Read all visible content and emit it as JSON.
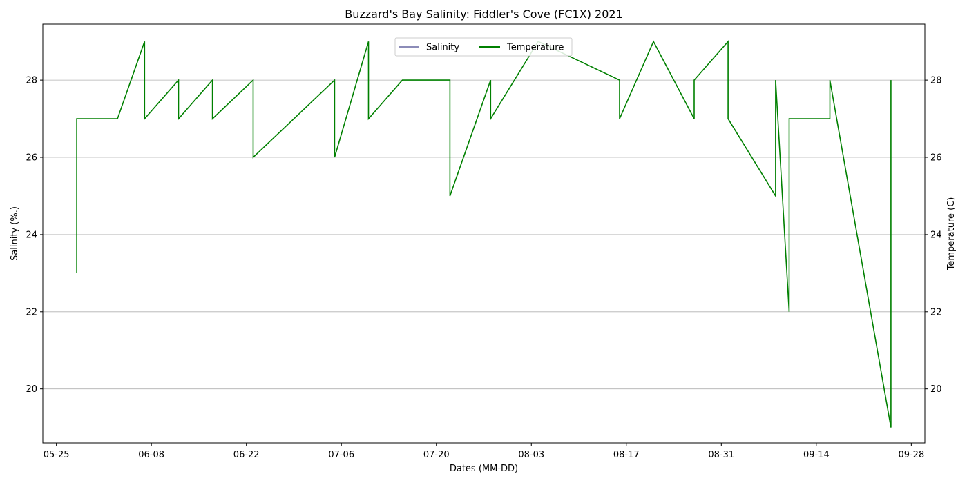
{
  "chart_data": {
    "type": "line",
    "title": "Buzzard's Bay Salinity: Fiddler's Cove (FC1X) 2021",
    "xlabel": "Dates (MM-DD)",
    "ylabel_left": "Salinity (%.)",
    "ylabel_right": "Temperature (C)",
    "xlim": [
      "2021-05-23",
      "2021-09-30"
    ],
    "ylim": [
      18.6,
      29.45
    ],
    "x_ticks": [
      "2021-05-25",
      "2021-06-08",
      "2021-06-22",
      "2021-07-06",
      "2021-07-20",
      "2021-08-03",
      "2021-08-17",
      "2021-08-31",
      "2021-09-14",
      "2021-09-28"
    ],
    "x_tick_labels": [
      "05-25",
      "06-08",
      "06-22",
      "07-06",
      "07-20",
      "08-03",
      "08-17",
      "08-31",
      "09-14",
      "09-28"
    ],
    "y_ticks": [
      20,
      22,
      24,
      26,
      28
    ],
    "y_tick_labels": [
      "20",
      "22",
      "24",
      "26",
      "28"
    ],
    "grid": "horizontal",
    "legend": {
      "placement": "top-center"
    },
    "series": [
      {
        "name": "Salinity",
        "color": "#191970",
        "x": [],
        "values": []
      },
      {
        "name": "Temperature",
        "color": "#008000",
        "x": [
          "2021-05-28",
          "2021-05-28",
          "2021-06-03",
          "2021-06-07",
          "2021-06-07",
          "2021-06-12",
          "2021-06-12",
          "2021-06-17",
          "2021-06-17",
          "2021-06-23",
          "2021-06-23",
          "2021-06-29",
          "2021-07-05",
          "2021-07-05",
          "2021-07-10",
          "2021-07-10",
          "2021-07-15",
          "2021-07-22",
          "2021-07-22",
          "2021-07-28",
          "2021-07-28",
          "2021-08-04",
          "2021-08-16",
          "2021-08-16",
          "2021-08-21",
          "2021-08-21",
          "2021-08-27",
          "2021-08-27",
          "2021-09-01",
          "2021-09-01",
          "2021-09-08",
          "2021-09-08",
          "2021-09-10",
          "2021-09-10",
          "2021-09-16",
          "2021-09-16",
          "2021-09-25",
          "2021-09-25"
        ],
        "values": [
          23,
          27,
          27,
          29,
          27,
          28,
          27,
          28,
          27,
          28,
          26,
          27,
          28,
          26,
          29,
          27,
          28,
          28,
          25,
          28,
          27,
          29,
          28,
          27,
          29,
          29,
          27,
          28,
          29,
          27,
          25,
          28,
          22,
          27,
          27,
          28,
          19,
          28
        ]
      }
    ]
  }
}
